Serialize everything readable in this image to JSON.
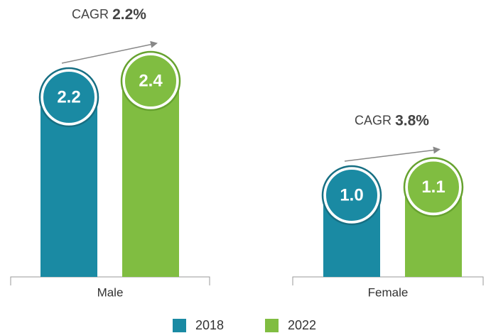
{
  "chart_data": {
    "type": "bar",
    "categories": [
      "Male",
      "Female"
    ],
    "series": [
      {
        "name": "2018",
        "color": "#1a8aa3",
        "values": [
          2.2,
          1.0
        ],
        "value_labels": [
          "2.2",
          "1.0"
        ]
      },
      {
        "name": "2022",
        "color": "#80bd41",
        "values": [
          2.4,
          1.1
        ],
        "value_labels": [
          "2.4",
          "1.1"
        ]
      }
    ],
    "annotations": [
      {
        "label": "CAGR",
        "value": "2.2%"
      },
      {
        "label": "CAGR",
        "value": "3.8%"
      }
    ]
  }
}
